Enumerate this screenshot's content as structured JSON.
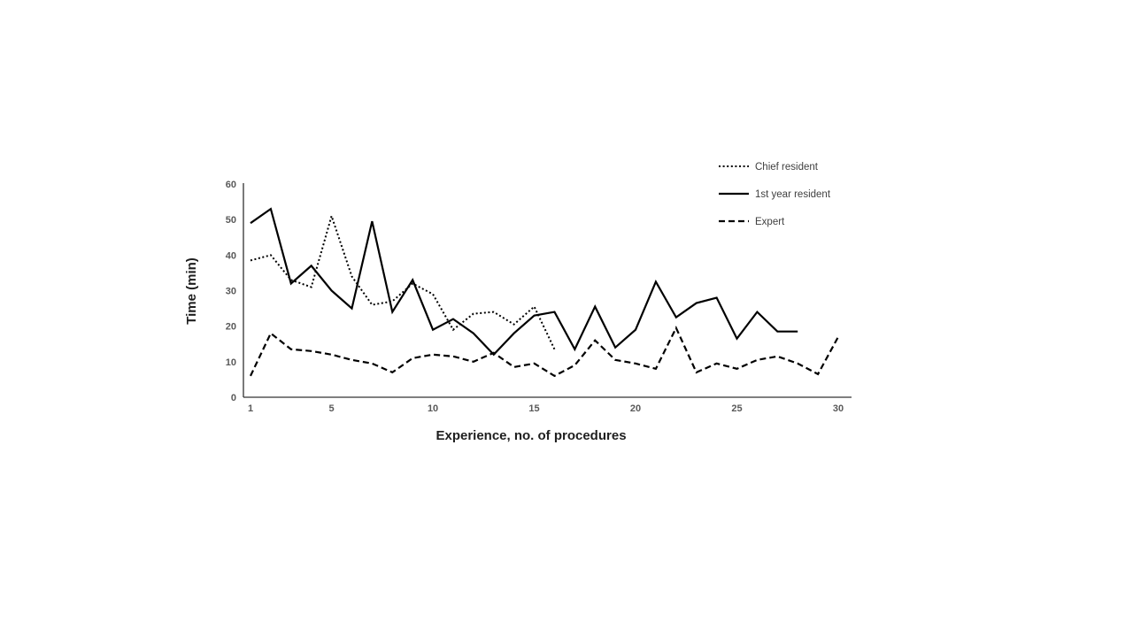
{
  "figure": {
    "background_color": "#ffffff",
    "series_color": "#000000",
    "axis_line_color": "#333333",
    "tick_label_color": "#595959",
    "legend_text_color": "#3f3f3f"
  },
  "chart_data": {
    "type": "line",
    "title": "",
    "xlabel": "Experience, no. of procedures",
    "ylabel": "Time (min)",
    "xlim": [
      1,
      30
    ],
    "ylim": [
      0,
      60
    ],
    "x_ticks": [
      1,
      5,
      10,
      15,
      20,
      25,
      30
    ],
    "y_ticks": [
      0,
      10,
      20,
      30,
      40,
      50,
      60
    ],
    "grid": false,
    "legend_position": "upper-right",
    "series": [
      {
        "name": "Chief resident",
        "line_style": "dotted",
        "color": "#000000",
        "x": [
          1,
          2,
          3,
          4,
          5,
          6,
          7,
          8,
          9,
          10,
          11,
          12,
          13,
          14,
          15,
          16
        ],
        "values": [
          38.5,
          40,
          33,
          31,
          51,
          34,
          26,
          27,
          32,
          29,
          19,
          23.5,
          24,
          20.5,
          25.5,
          13.5
        ]
      },
      {
        "name": "1st year resident",
        "line_style": "solid",
        "color": "#000000",
        "x": [
          1,
          2,
          3,
          4,
          5,
          6,
          7,
          8,
          9,
          10,
          11,
          12,
          13,
          14,
          15,
          16,
          17,
          18,
          19,
          20,
          21,
          22,
          23,
          24,
          25,
          26,
          27,
          28
        ],
        "values": [
          49,
          53,
          32,
          37,
          30,
          25,
          49.5,
          24,
          33,
          19,
          22,
          18,
          12,
          18,
          23,
          24,
          13.5,
          25.5,
          14,
          19,
          32.5,
          22.5,
          26.5,
          28,
          16.5,
          24,
          18.5,
          18.5
        ]
      },
      {
        "name": "Expert",
        "line_style": "dashed",
        "color": "#000000",
        "x": [
          1,
          2,
          3,
          4,
          5,
          6,
          7,
          8,
          9,
          10,
          11,
          12,
          13,
          14,
          15,
          16,
          17,
          18,
          19,
          20,
          21,
          22,
          23,
          24,
          25,
          26,
          27,
          28,
          29,
          30
        ],
        "values": [
          6,
          18,
          13.5,
          13,
          12,
          10.5,
          9.5,
          7,
          11,
          12,
          11.5,
          10,
          12.5,
          8.5,
          9.5,
          6,
          9,
          16,
          10.5,
          9.5,
          8,
          19.5,
          7,
          9.5,
          8,
          10.5,
          11.5,
          9.5,
          6.5,
          17
        ]
      }
    ]
  }
}
